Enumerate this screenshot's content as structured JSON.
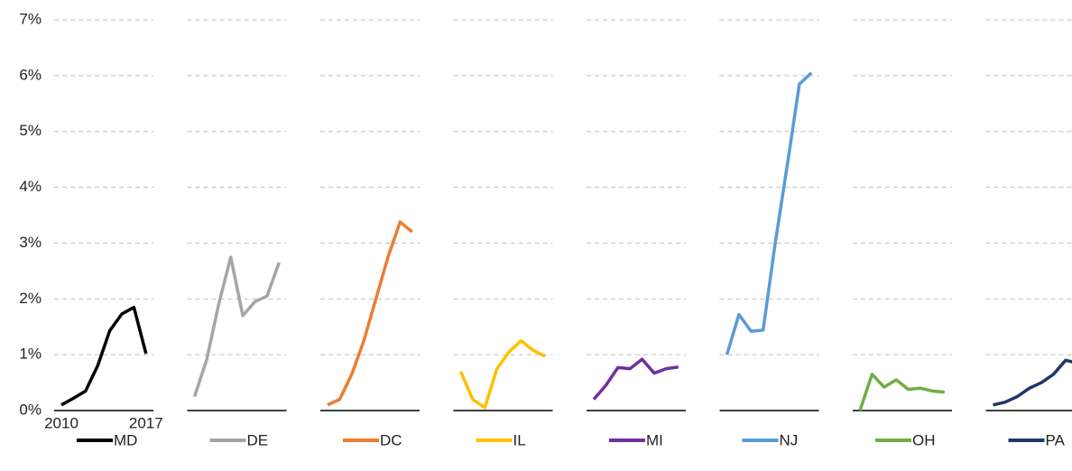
{
  "chart_data": {
    "type": "line",
    "categories": [
      2010,
      null,
      null,
      null,
      null,
      null,
      null,
      2017
    ],
    "ylim": [
      0,
      7
    ],
    "yticks": [
      {
        "value": 0,
        "label": "0%"
      },
      {
        "value": 1,
        "label": "1%"
      },
      {
        "value": 2,
        "label": "2%"
      },
      {
        "value": 3,
        "label": "3%"
      },
      {
        "value": 4,
        "label": "4%"
      },
      {
        "value": 5,
        "label": "5%"
      },
      {
        "value": 6,
        "label": "6%"
      },
      {
        "value": 7,
        "label": "7%"
      }
    ],
    "grid": true,
    "series": [
      {
        "name": "MD",
        "color": "#000000",
        "values": [
          0.1,
          0.22,
          0.35,
          0.8,
          1.43,
          1.73,
          1.85,
          1.02
        ]
      },
      {
        "name": "DE",
        "color": "#a5a5a5",
        "values": [
          0.25,
          0.9,
          1.9,
          2.75,
          1.7,
          1.95,
          2.05,
          2.65
        ]
      },
      {
        "name": "DC",
        "color": "#ed7d31",
        "values": [
          0.1,
          0.2,
          0.65,
          1.25,
          2.0,
          2.75,
          3.38,
          3.2
        ]
      },
      {
        "name": "IL",
        "color": "#ffc000",
        "values": [
          0.7,
          0.2,
          0.05,
          0.75,
          1.05,
          1.25,
          1.08,
          0.97
        ]
      },
      {
        "name": "MI",
        "color": "#7030a0",
        "values": [
          0.2,
          0.45,
          0.77,
          0.75,
          0.92,
          0.67,
          0.75,
          0.78
        ]
      },
      {
        "name": "NJ",
        "color": "#5b9bd5",
        "values": [
          1.0,
          1.72,
          1.42,
          1.44,
          3.0,
          4.4,
          5.85,
          6.05
        ]
      },
      {
        "name": "OH",
        "color": "#70ad47",
        "values": [
          0.0,
          0.65,
          0.42,
          0.55,
          0.38,
          0.4,
          0.35,
          0.33
        ]
      },
      {
        "name": "PA",
        "color": "#1f3864",
        "values": [
          0.1,
          0.15,
          0.25,
          0.4,
          0.5,
          0.65,
          0.9,
          0.85
        ]
      }
    ]
  }
}
